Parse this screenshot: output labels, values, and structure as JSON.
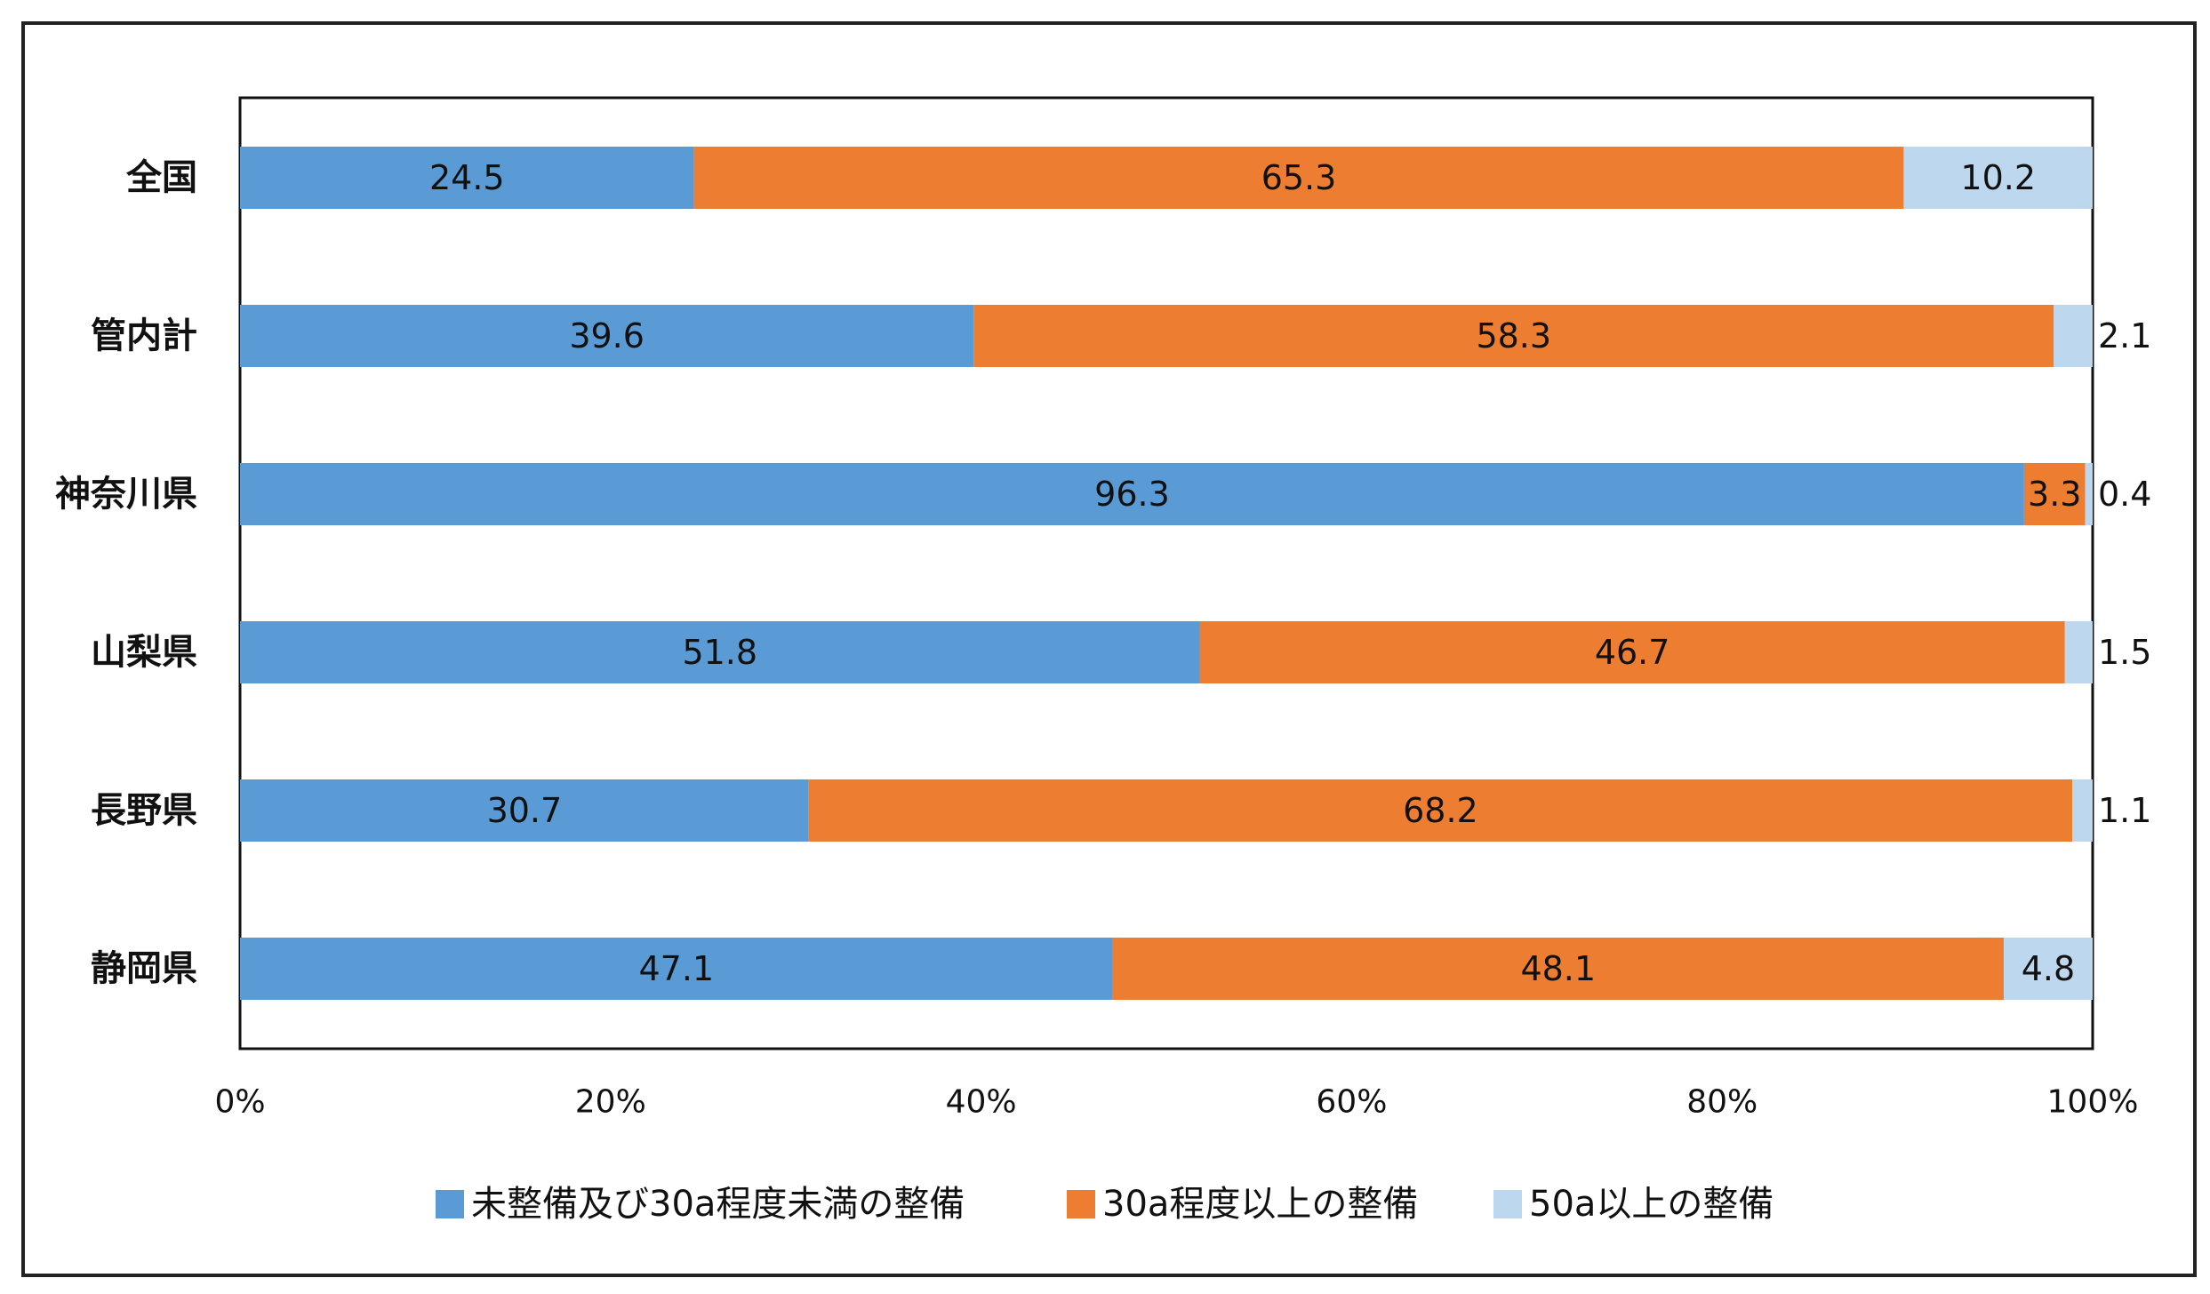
{
  "chart_data": {
    "type": "bar",
    "orientation": "horizontal",
    "stacked": "percent",
    "categories": [
      "全国",
      "管内計",
      "神奈川県",
      "山梨県",
      "長野県",
      "静岡県"
    ],
    "series": [
      {
        "name": "未整備及び30a程度未満の整備",
        "color": "#5b9bd5",
        "values": [
          24.5,
          39.6,
          96.3,
          51.8,
          30.7,
          47.1
        ]
      },
      {
        "name": "30a程度以上の整備",
        "color": "#ed7d31",
        "values": [
          65.3,
          58.3,
          3.3,
          46.7,
          68.2,
          48.1
        ]
      },
      {
        "name": "50a以上の整備",
        "color": "#bdd7ee",
        "values": [
          10.2,
          2.1,
          0.4,
          1.5,
          1.1,
          4.8
        ]
      }
    ],
    "xlim": [
      0,
      100
    ],
    "x_ticks": [
      "0%",
      "20%",
      "40%",
      "60%",
      "80%",
      "100%"
    ],
    "grid": false,
    "legend_position": "bottom"
  }
}
